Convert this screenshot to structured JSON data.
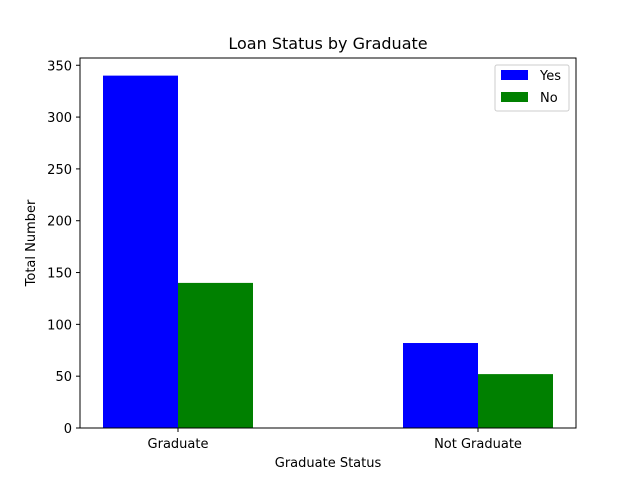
{
  "chart_data": {
    "type": "bar",
    "title": "Loan Status by Graduate",
    "xlabel": "Graduate Status",
    "ylabel": "Total Number",
    "categories": [
      "Graduate",
      "Not Graduate"
    ],
    "series": [
      {
        "name": "Yes",
        "color": "#0000ff",
        "values": [
          340,
          82
        ]
      },
      {
        "name": "No",
        "color": "#008000",
        "values": [
          140,
          52
        ]
      }
    ],
    "ylim": [
      0,
      357
    ],
    "yticks": [
      0,
      50,
      100,
      150,
      200,
      250,
      300,
      350
    ],
    "legend": "top-right",
    "grid": false
  }
}
